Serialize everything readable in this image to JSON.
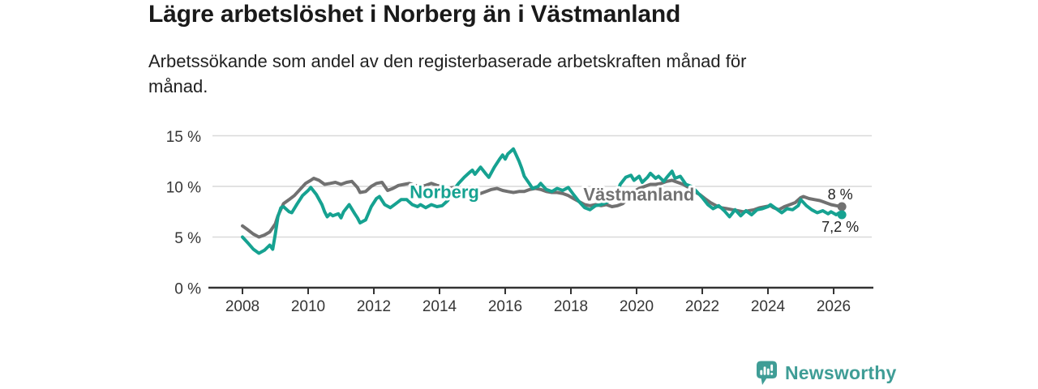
{
  "header": {
    "title": "Lägre arbetslöshet i Norberg än i Västmanland",
    "subtitle": "Arbetssökande som andel av den registerbaserade arbetskraften månad för\nmånad."
  },
  "footer": {
    "brand_name": "Newsworthy",
    "brand_color": "#3f9d96",
    "logo_icon": "bar-chart-speech-bubble-icon"
  },
  "chart_data": {
    "type": "line",
    "title": "Lägre arbetslöshet i Norberg än i Västmanland",
    "subtitle": "Arbetssökande som andel av den registerbaserade arbetskraften månad för månad.",
    "unit": "%",
    "legend": "inline-series-labels",
    "x_axis": {
      "ticks": [
        2008,
        2010,
        2012,
        2014,
        2016,
        2018,
        2020,
        2022,
        2024,
        2026
      ],
      "range": [
        2007.0,
        2027.2
      ],
      "grid": false
    },
    "y_axis": {
      "ticks": [
        {
          "value": 0,
          "label": "0 %"
        },
        {
          "value": 5,
          "label": "5 %"
        },
        {
          "value": 10,
          "label": "10 %"
        },
        {
          "value": 15,
          "label": "15 %"
        }
      ],
      "range": [
        0,
        16
      ],
      "grid": true
    },
    "colors": {
      "gridline": "#d9d9d9",
      "axis": "#333333",
      "tick_text": "#363636"
    },
    "series": [
      {
        "id": "vastmanland",
        "name": "Västmanland",
        "color": "#717171",
        "end_label": "8 %",
        "end_label_side": "above",
        "label_at": [
          2020.07,
          9.2
        ],
        "points": [
          [
            2008.0,
            6.1
          ],
          [
            2008.17,
            5.7
          ],
          [
            2008.33,
            5.3
          ],
          [
            2008.5,
            5.0
          ],
          [
            2008.67,
            5.2
          ],
          [
            2008.83,
            5.5
          ],
          [
            2009.0,
            6.3
          ],
          [
            2009.08,
            7.1
          ],
          [
            2009.25,
            8.3
          ],
          [
            2009.42,
            8.7
          ],
          [
            2009.58,
            9.1
          ],
          [
            2009.75,
            9.7
          ],
          [
            2009.92,
            10.3
          ],
          [
            2010.08,
            10.6
          ],
          [
            2010.17,
            10.8
          ],
          [
            2010.33,
            10.6
          ],
          [
            2010.5,
            10.2
          ],
          [
            2010.67,
            10.3
          ],
          [
            2010.83,
            10.4
          ],
          [
            2011.0,
            10.2
          ],
          [
            2011.17,
            10.4
          ],
          [
            2011.33,
            10.5
          ],
          [
            2011.5,
            9.9
          ],
          [
            2011.58,
            9.4
          ],
          [
            2011.75,
            9.5
          ],
          [
            2011.92,
            10.0
          ],
          [
            2012.08,
            10.3
          ],
          [
            2012.25,
            10.4
          ],
          [
            2012.42,
            9.6
          ],
          [
            2012.58,
            9.8
          ],
          [
            2012.75,
            10.1
          ],
          [
            2012.92,
            10.2
          ],
          [
            2013.08,
            10.3
          ],
          [
            2013.25,
            10.1
          ],
          [
            2013.42,
            10.0
          ],
          [
            2013.58,
            10.1
          ],
          [
            2013.75,
            10.3
          ],
          [
            2013.92,
            10.1
          ],
          [
            2014.08,
            10.0
          ],
          [
            2014.25,
            9.8
          ],
          [
            2014.42,
            9.9
          ],
          [
            2014.58,
            9.8
          ],
          [
            2014.75,
            9.6
          ],
          [
            2014.92,
            9.5
          ],
          [
            2015.08,
            9.4
          ],
          [
            2015.25,
            9.3
          ],
          [
            2015.42,
            9.5
          ],
          [
            2015.58,
            9.7
          ],
          [
            2015.75,
            9.8
          ],
          [
            2015.92,
            9.6
          ],
          [
            2016.08,
            9.5
          ],
          [
            2016.25,
            9.4
          ],
          [
            2016.42,
            9.5
          ],
          [
            2016.58,
            9.5
          ],
          [
            2016.75,
            9.7
          ],
          [
            2016.92,
            9.8
          ],
          [
            2017.08,
            9.7
          ],
          [
            2017.25,
            9.5
          ],
          [
            2017.42,
            9.4
          ],
          [
            2017.58,
            9.4
          ],
          [
            2017.75,
            9.3
          ],
          [
            2017.92,
            9.1
          ],
          [
            2018.08,
            8.8
          ],
          [
            2018.25,
            8.5
          ],
          [
            2018.42,
            8.2
          ],
          [
            2018.58,
            8.1
          ],
          [
            2018.75,
            8.2
          ],
          [
            2018.92,
            8.1
          ],
          [
            2019.08,
            8.2
          ],
          [
            2019.25,
            8.0
          ],
          [
            2019.42,
            8.1
          ],
          [
            2019.58,
            8.3
          ],
          [
            2019.75,
            8.9
          ],
          [
            2019.92,
            9.5
          ],
          [
            2020.08,
            9.8
          ],
          [
            2020.25,
            10.0
          ],
          [
            2020.42,
            10.2
          ],
          [
            2020.58,
            10.2
          ],
          [
            2020.75,
            10.3
          ],
          [
            2020.92,
            10.5
          ],
          [
            2021.08,
            10.6
          ],
          [
            2021.25,
            10.4
          ],
          [
            2021.42,
            10.2
          ],
          [
            2021.58,
            9.9
          ],
          [
            2021.75,
            9.5
          ],
          [
            2021.92,
            9.2
          ],
          [
            2022.08,
            8.8
          ],
          [
            2022.25,
            8.4
          ],
          [
            2022.42,
            8.1
          ],
          [
            2022.58,
            7.9
          ],
          [
            2022.75,
            7.8
          ],
          [
            2022.92,
            7.7
          ],
          [
            2023.08,
            7.6
          ],
          [
            2023.25,
            7.5
          ],
          [
            2023.42,
            7.6
          ],
          [
            2023.58,
            7.7
          ],
          [
            2023.75,
            7.9
          ],
          [
            2023.92,
            8.0
          ],
          [
            2024.08,
            8.1
          ],
          [
            2024.17,
            7.9
          ],
          [
            2024.33,
            7.7
          ],
          [
            2024.5,
            8.0
          ],
          [
            2024.67,
            8.2
          ],
          [
            2024.83,
            8.4
          ],
          [
            2025.0,
            8.9
          ],
          [
            2025.08,
            9.0
          ],
          [
            2025.25,
            8.8
          ],
          [
            2025.42,
            8.7
          ],
          [
            2025.58,
            8.6
          ],
          [
            2025.75,
            8.4
          ],
          [
            2025.92,
            8.2
          ],
          [
            2026.08,
            8.1
          ],
          [
            2026.25,
            8.0
          ]
        ]
      },
      {
        "id": "norberg",
        "name": "Norberg",
        "color": "#16a291",
        "end_label": "7,2 %",
        "end_label_side": "below",
        "label_at": [
          2014.15,
          9.45
        ],
        "points": [
          [
            2008.0,
            5.0
          ],
          [
            2008.17,
            4.4
          ],
          [
            2008.33,
            3.8
          ],
          [
            2008.5,
            3.4
          ],
          [
            2008.67,
            3.7
          ],
          [
            2008.83,
            4.2
          ],
          [
            2008.92,
            3.8
          ],
          [
            2009.0,
            5.3
          ],
          [
            2009.08,
            7.0
          ],
          [
            2009.17,
            7.9
          ],
          [
            2009.25,
            8.0
          ],
          [
            2009.42,
            7.5
          ],
          [
            2009.5,
            7.4
          ],
          [
            2009.67,
            8.3
          ],
          [
            2009.83,
            9.1
          ],
          [
            2010.0,
            9.6
          ],
          [
            2010.08,
            9.9
          ],
          [
            2010.25,
            9.2
          ],
          [
            2010.42,
            8.2
          ],
          [
            2010.5,
            7.5
          ],
          [
            2010.58,
            7.0
          ],
          [
            2010.67,
            7.3
          ],
          [
            2010.75,
            7.1
          ],
          [
            2010.92,
            7.3
          ],
          [
            2011.0,
            6.9
          ],
          [
            2011.08,
            7.5
          ],
          [
            2011.25,
            8.2
          ],
          [
            2011.42,
            7.3
          ],
          [
            2011.5,
            6.9
          ],
          [
            2011.58,
            6.4
          ],
          [
            2011.75,
            6.7
          ],
          [
            2011.92,
            8.0
          ],
          [
            2012.08,
            8.8
          ],
          [
            2012.17,
            9.0
          ],
          [
            2012.33,
            8.2
          ],
          [
            2012.5,
            7.9
          ],
          [
            2012.67,
            8.3
          ],
          [
            2012.83,
            8.7
          ],
          [
            2013.0,
            8.7
          ],
          [
            2013.17,
            8.2
          ],
          [
            2013.33,
            8.0
          ],
          [
            2013.42,
            8.2
          ],
          [
            2013.58,
            7.9
          ],
          [
            2013.75,
            8.2
          ],
          [
            2013.92,
            8.0
          ],
          [
            2014.08,
            8.1
          ],
          [
            2014.25,
            8.6
          ],
          [
            2014.42,
            9.6
          ],
          [
            2014.58,
            10.3
          ],
          [
            2014.75,
            10.9
          ],
          [
            2014.92,
            11.4
          ],
          [
            2015.0,
            11.6
          ],
          [
            2015.08,
            11.2
          ],
          [
            2015.25,
            11.9
          ],
          [
            2015.42,
            11.2
          ],
          [
            2015.5,
            10.9
          ],
          [
            2015.67,
            11.9
          ],
          [
            2015.83,
            12.7
          ],
          [
            2015.92,
            13.1
          ],
          [
            2016.0,
            12.7
          ],
          [
            2016.08,
            13.2
          ],
          [
            2016.25,
            13.7
          ],
          [
            2016.42,
            12.5
          ],
          [
            2016.5,
            11.8
          ],
          [
            2016.58,
            11.0
          ],
          [
            2016.75,
            10.2
          ],
          [
            2016.83,
            9.8
          ],
          [
            2017.0,
            10.0
          ],
          [
            2017.08,
            10.3
          ],
          [
            2017.25,
            9.7
          ],
          [
            2017.42,
            9.5
          ],
          [
            2017.58,
            9.8
          ],
          [
            2017.75,
            9.6
          ],
          [
            2017.92,
            9.9
          ],
          [
            2018.08,
            9.2
          ],
          [
            2018.25,
            8.5
          ],
          [
            2018.42,
            7.9
          ],
          [
            2018.58,
            7.7
          ],
          [
            2018.75,
            8.1
          ],
          [
            2018.92,
            8.2
          ],
          [
            2019.08,
            8.4
          ],
          [
            2019.25,
            8.7
          ],
          [
            2019.42,
            9.5
          ],
          [
            2019.5,
            10.2
          ],
          [
            2019.67,
            10.9
          ],
          [
            2019.83,
            11.1
          ],
          [
            2019.92,
            10.6
          ],
          [
            2020.08,
            11.0
          ],
          [
            2020.17,
            10.4
          ],
          [
            2020.33,
            10.9
          ],
          [
            2020.42,
            11.3
          ],
          [
            2020.58,
            10.8
          ],
          [
            2020.67,
            11.0
          ],
          [
            2020.83,
            10.5
          ],
          [
            2020.92,
            10.9
          ],
          [
            2021.08,
            11.5
          ],
          [
            2021.17,
            10.8
          ],
          [
            2021.33,
            11.0
          ],
          [
            2021.5,
            10.2
          ],
          [
            2021.67,
            10.0
          ],
          [
            2021.83,
            9.5
          ],
          [
            2022.0,
            8.9
          ],
          [
            2022.17,
            8.2
          ],
          [
            2022.33,
            7.8
          ],
          [
            2022.5,
            8.1
          ],
          [
            2022.67,
            7.6
          ],
          [
            2022.83,
            7.0
          ],
          [
            2023.0,
            7.7
          ],
          [
            2023.17,
            7.1
          ],
          [
            2023.33,
            7.6
          ],
          [
            2023.5,
            7.2
          ],
          [
            2023.67,
            7.7
          ],
          [
            2023.83,
            7.8
          ],
          [
            2024.0,
            8.0
          ],
          [
            2024.08,
            8.2
          ],
          [
            2024.25,
            7.8
          ],
          [
            2024.42,
            7.4
          ],
          [
            2024.58,
            7.8
          ],
          [
            2024.75,
            7.7
          ],
          [
            2024.92,
            8.1
          ],
          [
            2025.0,
            8.7
          ],
          [
            2025.17,
            8.1
          ],
          [
            2025.33,
            7.7
          ],
          [
            2025.5,
            7.4
          ],
          [
            2025.67,
            7.6
          ],
          [
            2025.83,
            7.3
          ],
          [
            2025.92,
            7.5
          ],
          [
            2026.08,
            7.2
          ],
          [
            2026.17,
            7.4
          ],
          [
            2026.25,
            7.2
          ]
        ]
      }
    ]
  }
}
